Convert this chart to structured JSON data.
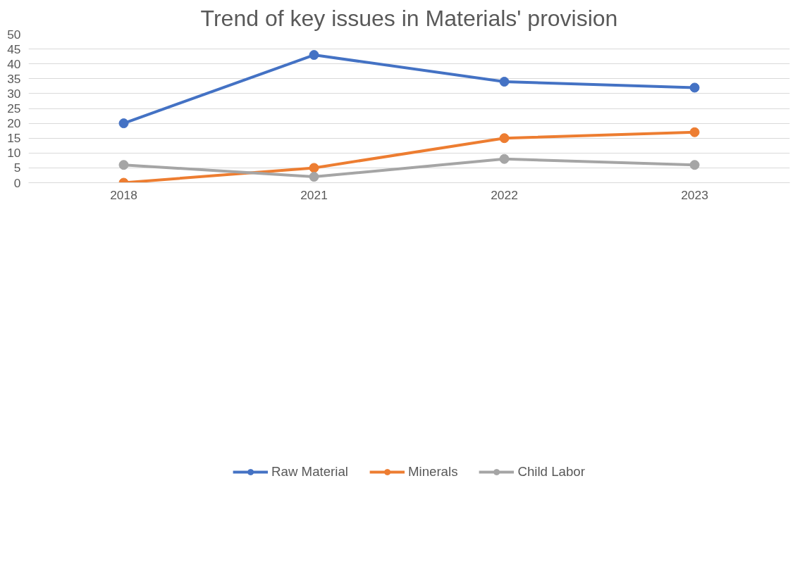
{
  "chart_data": {
    "type": "line",
    "title": "Trend of key issues in Materials' provision",
    "categories": [
      "2018",
      "2021",
      "2022",
      "2023"
    ],
    "series": [
      {
        "name": "Raw Material",
        "color": "#4472c4",
        "values": [
          20,
          43,
          34,
          32
        ]
      },
      {
        "name": "Minerals",
        "color": "#ed7d31",
        "values": [
          0,
          5,
          15,
          17
        ]
      },
      {
        "name": "Child Labor",
        "color": "#a5a5a5",
        "values": [
          6,
          2,
          8,
          6
        ]
      }
    ],
    "ylim": [
      0,
      50
    ],
    "yticks": [
      0,
      5,
      10,
      15,
      20,
      25,
      30,
      35,
      40,
      45,
      50
    ],
    "grid": "y",
    "legend": "bottom",
    "marker": "circle",
    "line_style": "solid"
  }
}
